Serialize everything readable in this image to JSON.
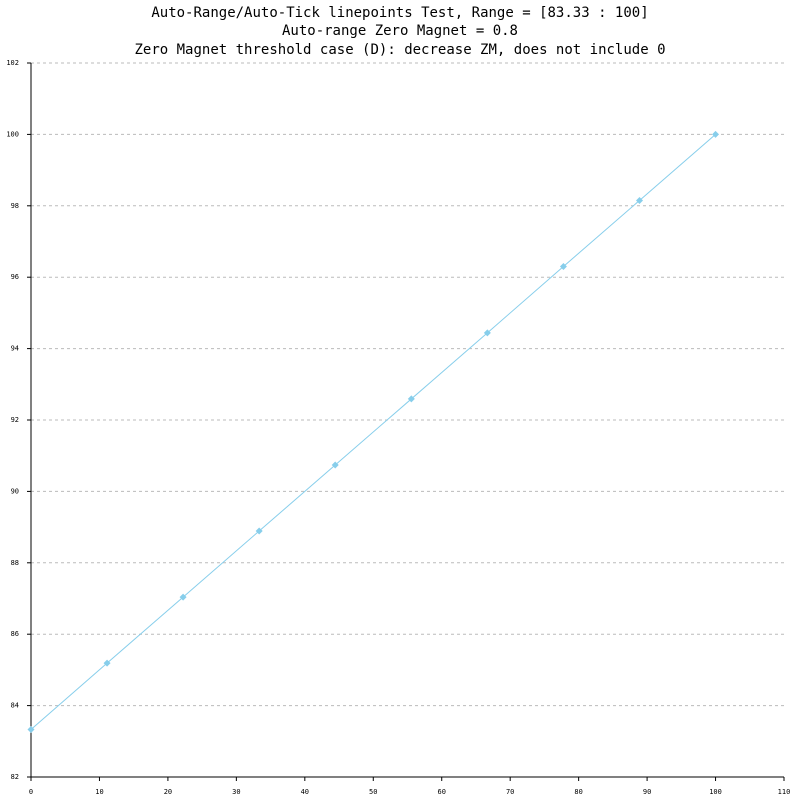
{
  "chart_data": {
    "type": "linepoints",
    "title": [
      "Auto-Range/Auto-Tick linepoints Test, Range = [83.33 : 100]",
      "Auto-range Zero Magnet = 0.8",
      "Zero Magnet threshold case (D): decrease ZM, does not include 0"
    ],
    "x": [
      0,
      11.11,
      22.22,
      33.33,
      44.44,
      55.56,
      66.67,
      77.78,
      88.89,
      100
    ],
    "values": [
      83.33,
      85.19,
      87.04,
      88.89,
      90.74,
      92.59,
      94.44,
      96.3,
      98.15,
      100
    ],
    "color": "#87ceeb",
    "xlim": [
      0,
      110
    ],
    "xticks": [
      0,
      10,
      20,
      30,
      40,
      50,
      60,
      70,
      80,
      90,
      100,
      110
    ],
    "ylim": [
      82,
      102
    ],
    "yticks": [
      82,
      84,
      86,
      88,
      90,
      92,
      94,
      96,
      98,
      100,
      102
    ],
    "grid": true
  }
}
